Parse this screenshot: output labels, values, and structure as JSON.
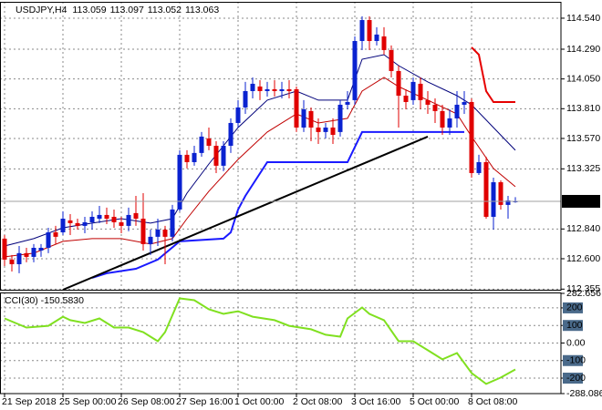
{
  "chart_data": [
    {
      "type": "candlestick",
      "title": "USDJPY,H4",
      "categories": [
        "21 Sep 2018",
        null,
        null,
        null,
        null,
        null,
        null,
        null,
        "25 Sep 00:00",
        null,
        null,
        null,
        null,
        null,
        null,
        null,
        "26 Sep 08:00",
        null,
        null,
        null,
        null,
        null,
        null,
        null,
        "27 Sep 16:00",
        null,
        null,
        null,
        null,
        null,
        null,
        null,
        "1 Oct 00:00",
        null,
        null,
        null,
        null,
        null,
        null,
        null,
        "2 Oct 08:00",
        null,
        null,
        null,
        null,
        null,
        null,
        null,
        "3 Oct 16:00",
        null,
        null,
        null,
        null,
        null,
        null,
        null,
        "5 Oct 00:00",
        null,
        null,
        null,
        null,
        null,
        null,
        null,
        "8 Oct 08:00",
        null,
        null,
        null,
        null,
        null,
        null
      ],
      "open": [
        112.762,
        112.593,
        112.556,
        112.645,
        112.615,
        112.666,
        112.688,
        112.813,
        112.813,
        112.909,
        112.887,
        112.865,
        112.894,
        112.923,
        112.953,
        112.938,
        112.894,
        112.865,
        112.968,
        112.923,
        112.718,
        112.777,
        112.835,
        112.777,
        112.997,
        113.438,
        113.379,
        113.453,
        113.57,
        113.511,
        113.35,
        113.511,
        113.695,
        113.82,
        113.952,
        113.989,
        113.952,
        113.967,
        113.952,
        113.967,
        113.967,
        113.658,
        113.791,
        113.658,
        113.622,
        113.658,
        113.622,
        113.842,
        113.879,
        114.356,
        114.525,
        114.356,
        114.393,
        114.283,
        114.114,
        113.915,
        113.879,
        114.011,
        113.879,
        113.842,
        113.791,
        113.658,
        113.732,
        113.842,
        113.864,
        113.291,
        113.379,
        112.938,
        113.217,
        113.034,
        113.059
      ],
      "high": [
        112.791,
        112.63,
        112.703,
        112.688,
        112.718,
        112.718,
        112.85,
        112.865,
        112.982,
        112.96,
        112.923,
        112.938,
        112.982,
        113.026,
        113.012,
        112.997,
        112.938,
        113.012,
        113.107,
        113.129,
        112.835,
        112.923,
        112.865,
        113.034,
        113.475,
        113.475,
        113.511,
        113.622,
        113.658,
        113.548,
        113.548,
        113.732,
        113.879,
        114.026,
        114.062,
        114.04,
        114.026,
        114.04,
        114.026,
        114.04,
        113.989,
        113.879,
        113.82,
        113.732,
        113.695,
        113.732,
        113.879,
        113.952,
        114.393,
        114.555,
        114.555,
        114.467,
        114.467,
        114.32,
        114.158,
        113.967,
        114.062,
        114.062,
        113.952,
        113.893,
        113.842,
        113.805,
        113.952,
        113.952,
        113.893,
        113.438,
        113.423,
        113.254,
        113.232,
        113.107,
        113.097
      ],
      "low": [
        112.541,
        112.497,
        112.483,
        112.571,
        112.571,
        112.615,
        112.645,
        112.718,
        112.791,
        112.791,
        112.835,
        112.806,
        112.835,
        112.887,
        112.879,
        112.85,
        112.806,
        112.821,
        112.865,
        112.666,
        112.63,
        112.703,
        112.556,
        112.74,
        112.982,
        113.328,
        113.35,
        113.423,
        113.475,
        113.291,
        113.306,
        113.453,
        113.658,
        113.768,
        113.893,
        113.879,
        113.908,
        113.908,
        113.893,
        113.893,
        113.622,
        113.622,
        113.548,
        113.526,
        113.57,
        113.526,
        113.585,
        113.805,
        113.842,
        114.283,
        114.283,
        114.32,
        114.246,
        114.062,
        113.658,
        113.805,
        113.842,
        113.805,
        113.768,
        113.695,
        113.599,
        113.599,
        113.658,
        113.768,
        113.254,
        113.276,
        112.923,
        112.835,
        112.997,
        112.923,
        113.052
      ],
      "close": [
        112.593,
        112.556,
        112.645,
        112.615,
        112.688,
        112.688,
        112.813,
        112.777,
        112.923,
        112.887,
        112.865,
        112.894,
        112.938,
        112.953,
        112.923,
        112.894,
        112.865,
        112.953,
        112.923,
        112.718,
        112.777,
        112.835,
        112.777,
        112.997,
        113.438,
        113.379,
        113.453,
        113.585,
        113.511,
        113.35,
        113.511,
        113.695,
        113.82,
        113.952,
        114.011,
        113.952,
        113.967,
        113.952,
        113.967,
        113.952,
        113.658,
        113.805,
        113.658,
        113.622,
        113.658,
        113.599,
        113.842,
        113.864,
        114.356,
        114.525,
        114.356,
        114.408,
        114.283,
        114.114,
        113.915,
        113.864,
        114.026,
        113.879,
        113.842,
        113.791,
        113.658,
        113.732,
        113.842,
        113.864,
        113.291,
        113.379,
        112.938,
        113.217,
        113.034,
        113.07,
        113.063
      ],
      "up_color": "#0a22d0",
      "down_color": "#e00000",
      "lines": [
        {
          "color": "#00007a",
          "width": 1,
          "x": [
            0,
            4,
            8,
            12,
            16,
            20,
            23,
            25,
            28,
            32,
            36,
            40,
            43,
            47,
            49,
            52,
            54,
            58,
            62,
            64,
            67,
            70
          ],
          "values": [
            112.703,
            112.762,
            112.85,
            112.887,
            112.923,
            112.887,
            112.923,
            113.129,
            113.364,
            113.658,
            113.879,
            113.952,
            113.879,
            113.879,
            114.209,
            114.246,
            114.158,
            114.026,
            113.915,
            113.842,
            113.658,
            113.475
          ]
        },
        {
          "color": "#c00000",
          "width": 1,
          "x": [
            0,
            4,
            8,
            12,
            16,
            20,
            23,
            25,
            28,
            32,
            36,
            40,
            43,
            47,
            49,
            52,
            54,
            58,
            62,
            64,
            67,
            70
          ],
          "values": [
            112.615,
            112.645,
            112.74,
            112.762,
            112.762,
            112.718,
            112.762,
            112.923,
            113.144,
            113.401,
            113.622,
            113.768,
            113.695,
            113.732,
            113.952,
            114.062,
            113.989,
            113.879,
            113.768,
            113.585,
            113.328,
            113.181
          ]
        },
        {
          "color": "#1a1aff",
          "width": 2,
          "x": [
            12,
            14,
            18,
            21,
            24,
            30,
            31,
            32,
            33,
            36,
            47,
            49,
            63
          ],
          "values": [
            112.446,
            112.483,
            112.519,
            112.593,
            112.74,
            112.762,
            112.813,
            112.997,
            113.107,
            113.379,
            113.379,
            113.622,
            113.622
          ]
        },
        {
          "color": "#e60000",
          "width": 2,
          "x": [
            64,
            65,
            66,
            67,
            70
          ],
          "values": [
            114.305,
            114.246,
            113.952,
            113.864,
            113.864
          ]
        },
        {
          "color": "#000000",
          "width": 2,
          "x": [
            8,
            58
          ],
          "values": [
            112.35,
            113.585
          ]
        }
      ],
      "ylim": [
        112.35,
        114.65
      ],
      "yticks": [
        {
          "value": 112.355,
          "label": "112.355"
        },
        {
          "value": 112.6,
          "label": "112.600"
        },
        {
          "value": 112.84,
          "label": "112.840"
        },
        {
          "value": 113.325,
          "label": "113.325"
        },
        {
          "value": 113.57,
          "label": "113.570"
        },
        {
          "value": 113.81,
          "label": "113.810"
        },
        {
          "value": 114.05,
          "label": "114.050"
        },
        {
          "value": 114.29,
          "label": "114.290"
        },
        {
          "value": 114.54,
          "label": "114.540"
        }
      ],
      "grid": true
    },
    {
      "type": "line",
      "title": "CCI(30) -150.5830",
      "color": "#80e020",
      "x": [
        0,
        3,
        6,
        8,
        9,
        11,
        13,
        15,
        17,
        19,
        21,
        22,
        24,
        26,
        28,
        30,
        32,
        34,
        37,
        39,
        42,
        44,
        46,
        47,
        49,
        50,
        52,
        54,
        56,
        58,
        60,
        62,
        64,
        66,
        68,
        70
      ],
      "values": [
        140,
        88,
        98,
        150,
        130,
        114,
        140,
        88,
        88,
        62,
        10,
        62,
        254,
        244,
        192,
        166,
        181,
        150,
        130,
        98,
        78,
        47,
        36,
        140,
        202,
        166,
        130,
        10,
        10,
        -41,
        -93,
        -57,
        -171,
        -233,
        -197,
        -150.583
      ],
      "ylim": [
        -288.0865,
        282.656
      ],
      "yticks": [
        -288.0865,
        -200,
        -100,
        {
          "value": 0,
          "label": "0.00"
        },
        100,
        200,
        282.656
      ],
      "grid": true
    }
  ]
}
